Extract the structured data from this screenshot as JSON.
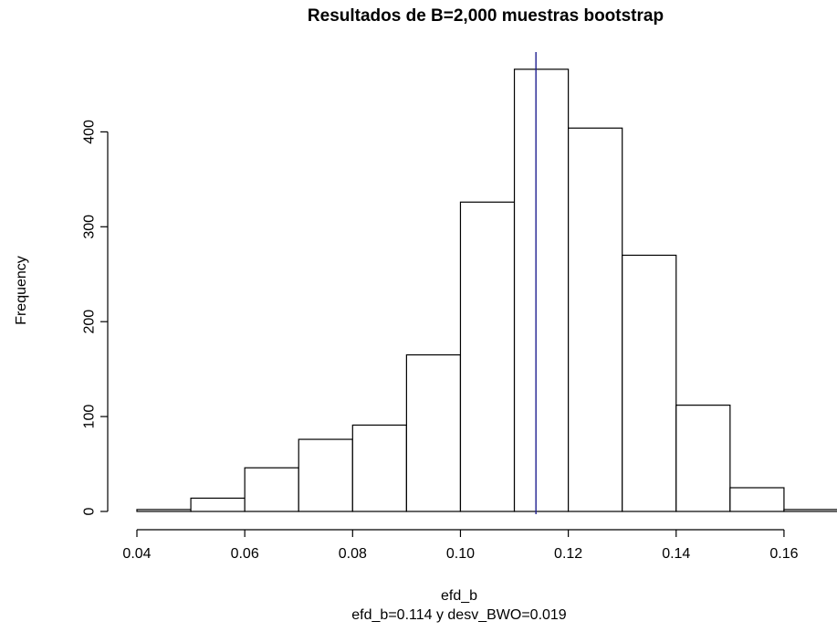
{
  "chart_data": {
    "type": "bar",
    "subtype": "histogram",
    "title": "Resultados de B=2,000 muestras bootstrap",
    "xlabel": "efd_b",
    "ylabel": "Frequency",
    "subtitle": "efd_b=0.114 y desv_BWO=0.019",
    "bins": [
      {
        "start": 0.04,
        "end": 0.05,
        "count": 2
      },
      {
        "start": 0.05,
        "end": 0.06,
        "count": 14
      },
      {
        "start": 0.06,
        "end": 0.07,
        "count": 46
      },
      {
        "start": 0.07,
        "end": 0.08,
        "count": 76
      },
      {
        "start": 0.08,
        "end": 0.09,
        "count": 91
      },
      {
        "start": 0.09,
        "end": 0.1,
        "count": 165
      },
      {
        "start": 0.1,
        "end": 0.11,
        "count": 326
      },
      {
        "start": 0.11,
        "end": 0.12,
        "count": 466
      },
      {
        "start": 0.12,
        "end": 0.13,
        "count": 404
      },
      {
        "start": 0.13,
        "end": 0.14,
        "count": 270
      },
      {
        "start": 0.14,
        "end": 0.15,
        "count": 112
      },
      {
        "start": 0.15,
        "end": 0.16,
        "count": 25
      },
      {
        "start": 0.16,
        "end": 0.17,
        "count": 2
      }
    ],
    "xticks": [
      "0.04",
      "0.06",
      "0.08",
      "0.10",
      "0.12",
      "0.14",
      "0.16"
    ],
    "yticks": [
      "0",
      "100",
      "200",
      "300",
      "400"
    ],
    "xlim": [
      0.04,
      0.17
    ],
    "ylim": [
      0,
      466
    ],
    "vline": {
      "x": 0.114,
      "color": "#1f1f8f"
    },
    "bar_fill": "#ffffff",
    "bar_stroke": "#000000",
    "grid": false,
    "legend": "none"
  }
}
